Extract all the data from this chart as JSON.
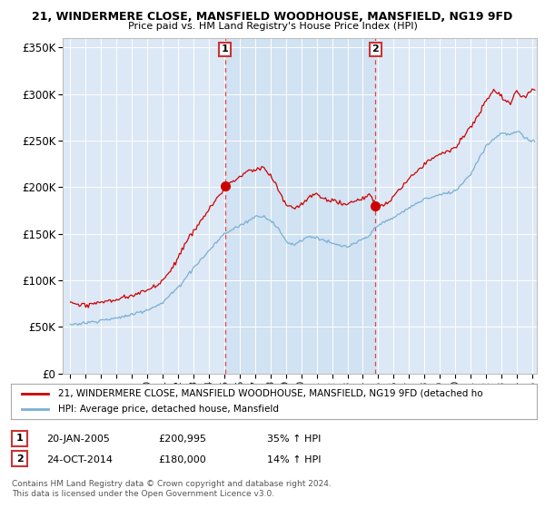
{
  "title1": "21, WINDERMERE CLOSE, MANSFIELD WOODHOUSE, MANSFIELD, NG19 9FD",
  "title2": "Price paid vs. HM Land Registry's House Price Index (HPI)",
  "ylabel_ticks": [
    "£0",
    "£50K",
    "£100K",
    "£150K",
    "£200K",
    "£250K",
    "£300K",
    "£350K"
  ],
  "ytick_vals": [
    0,
    50000,
    100000,
    150000,
    200000,
    250000,
    300000,
    350000
  ],
  "ylim": [
    0,
    360000
  ],
  "sale1": {
    "date_str": "20-JAN-2005",
    "price": 200995,
    "year": 2005.05,
    "label": "1",
    "hpi_pct": "35% ↑ HPI"
  },
  "sale2": {
    "date_str": "24-OCT-2014",
    "price": 180000,
    "year": 2014.81,
    "label": "2",
    "hpi_pct": "14% ↑ HPI"
  },
  "legend_line1": "21, WINDERMERE CLOSE, MANSFIELD WOODHOUSE, MANSFIELD, NG19 9FD (detached ho",
  "legend_line2": "HPI: Average price, detached house, Mansfield",
  "footnote": "Contains HM Land Registry data © Crown copyright and database right 2024.\nThis data is licensed under the Open Government Licence v3.0.",
  "line_color_red": "#cc0000",
  "line_color_blue": "#7aafd4",
  "fill_color": "#dce8f5",
  "vline_color": "#dd4444",
  "bg_color": "#dce8f5",
  "box_color": "#cc3333",
  "xlim_start": 1994.5,
  "xlim_end": 2025.3
}
